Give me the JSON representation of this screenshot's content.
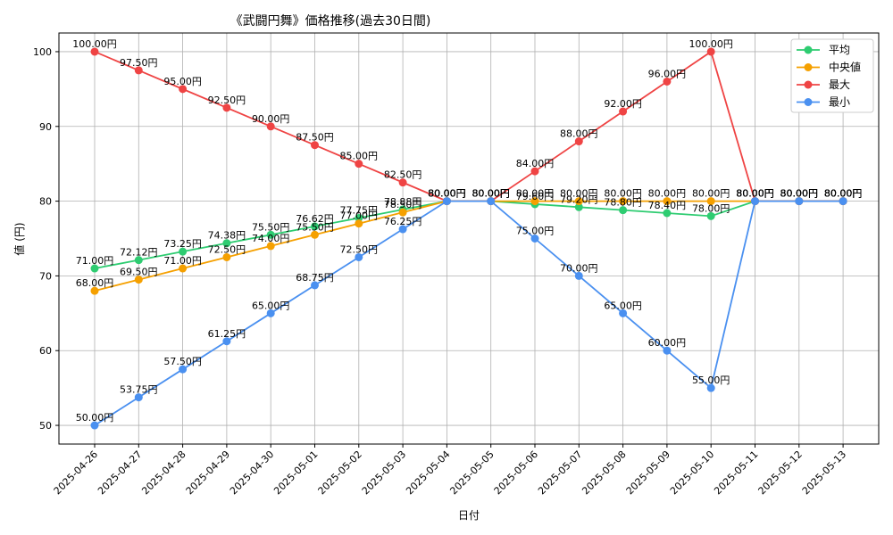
{
  "chart_data": {
    "type": "line",
    "title": "《武闘円舞》価格推移(過去30日間)",
    "xlabel": "日付",
    "ylabel": "値 (円)",
    "ylim": [
      47.5,
      102.5
    ],
    "yticks": [
      50,
      60,
      70,
      80,
      90,
      100
    ],
    "grid": true,
    "legend_position": "top-right",
    "categories": [
      "2025-04-26",
      "2025-04-27",
      "2025-04-28",
      "2025-04-29",
      "2025-04-30",
      "2025-05-01",
      "2025-05-02",
      "2025-05-03",
      "2025-05-04",
      "2025-05-05",
      "2025-05-06",
      "2025-05-07",
      "2025-05-08",
      "2025-05-09",
      "2025-05-10",
      "2025-05-11",
      "2025-05-12",
      "2025-05-13"
    ],
    "series": [
      {
        "name": "平均",
        "color": "#2ecc71",
        "values": [
          71.0,
          72.12,
          73.25,
          74.38,
          75.5,
          76.62,
          77.75,
          78.88,
          80.0,
          80.0,
          79.6,
          79.2,
          78.8,
          78.4,
          78.0,
          80.0,
          80.0,
          80.0
        ],
        "labels": [
          "71.00円",
          "72.12円",
          "73.25円",
          "74.38円",
          "75.50円",
          "76.62円",
          "77.75円",
          "78.88円",
          "80.00円",
          "80.00円",
          "79.60円",
          "79.20円",
          "78.80円",
          "78.40円",
          "78.00円",
          "80.00円",
          "80.00円",
          "80.00円"
        ]
      },
      {
        "name": "中央値",
        "color": "#f5a000",
        "values": [
          68.0,
          69.5,
          71.0,
          72.5,
          74.0,
          75.5,
          77.0,
          78.5,
          80.0,
          80.0,
          80.0,
          80.0,
          80.0,
          80.0,
          80.0,
          80.0,
          80.0,
          80.0
        ],
        "labels": [
          "68.00円",
          "69.50円",
          "71.00円",
          "72.50円",
          "74.00円",
          "75.50円",
          "77.00円",
          "78.50円",
          "80.00円",
          "80.00円",
          "80.00円",
          "80.00円",
          "80.00円",
          "80.00円",
          "80.00円",
          "80.00円",
          "80.00円",
          "80.00円"
        ]
      },
      {
        "name": "最大",
        "color": "#ef4444",
        "values": [
          100.0,
          97.5,
          95.0,
          92.5,
          90.0,
          87.5,
          85.0,
          82.5,
          80.0,
          80.0,
          84.0,
          88.0,
          92.0,
          96.0,
          100.0,
          80.0,
          80.0,
          80.0
        ],
        "labels": [
          "100.00円",
          "97.50円",
          "95.00円",
          "92.50円",
          "90.00円",
          "87.50円",
          "85.00円",
          "82.50円",
          "80.00円",
          "80.00円",
          "84.00円",
          "88.00円",
          "92.00円",
          "96.00円",
          "100.00円",
          "80.00円",
          "80.00円",
          "80.00円"
        ]
      },
      {
        "name": "最小",
        "color": "#4a90f0",
        "values": [
          50.0,
          53.75,
          57.5,
          61.25,
          65.0,
          68.75,
          72.5,
          76.25,
          80.0,
          80.0,
          75.0,
          70.0,
          65.0,
          60.0,
          55.0,
          80.0,
          80.0,
          80.0
        ],
        "labels": [
          "50.00円",
          "53.75円",
          "57.50円",
          "61.25円",
          "65.00円",
          "68.75円",
          "72.50円",
          "76.25円",
          "80.00円",
          "80.00円",
          "75.00円",
          "70.00円",
          "65.00円",
          "60.00円",
          "55.00円",
          "80.00円",
          "80.00円",
          "80.00円"
        ]
      }
    ]
  }
}
